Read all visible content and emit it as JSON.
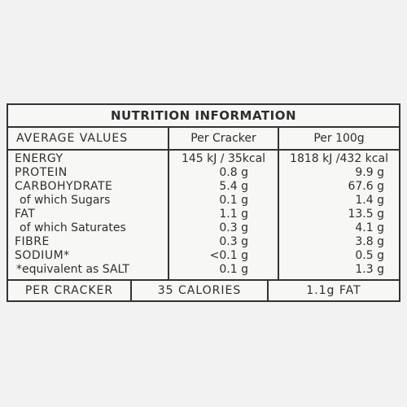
{
  "table": {
    "title": "NUTRITION INFORMATION",
    "header": [
      "AVERAGE VALUES",
      "Per Cracker",
      "Per 100g"
    ],
    "rows": [
      [
        "ENERGY",
        "145 kJ / 35kcal",
        "1818 kJ /432 kcal"
      ],
      [
        "PROTEIN",
        "0.8 g",
        "9.9 g"
      ],
      [
        "CARBOHYDRATE",
        "5.4 g",
        "67.6 g"
      ],
      [
        "of which Sugars",
        "0.1 g",
        "1.4 g"
      ],
      [
        "FAT",
        "1.1 g",
        "13.5 g"
      ],
      [
        "of which Saturates",
        "0.3 g",
        "4.1 g"
      ],
      [
        "FIBRE",
        "0.3 g",
        "3.8 g"
      ],
      [
        "SODIUM*",
        "<0.1 g",
        "0.5 g"
      ],
      [
        "*equivalent as SALT",
        "0.1 g",
        "1.3 g"
      ]
    ],
    "footer": [
      "PER CRACKER",
      "35 CALORIES",
      "1.1g FAT"
    ]
  }
}
